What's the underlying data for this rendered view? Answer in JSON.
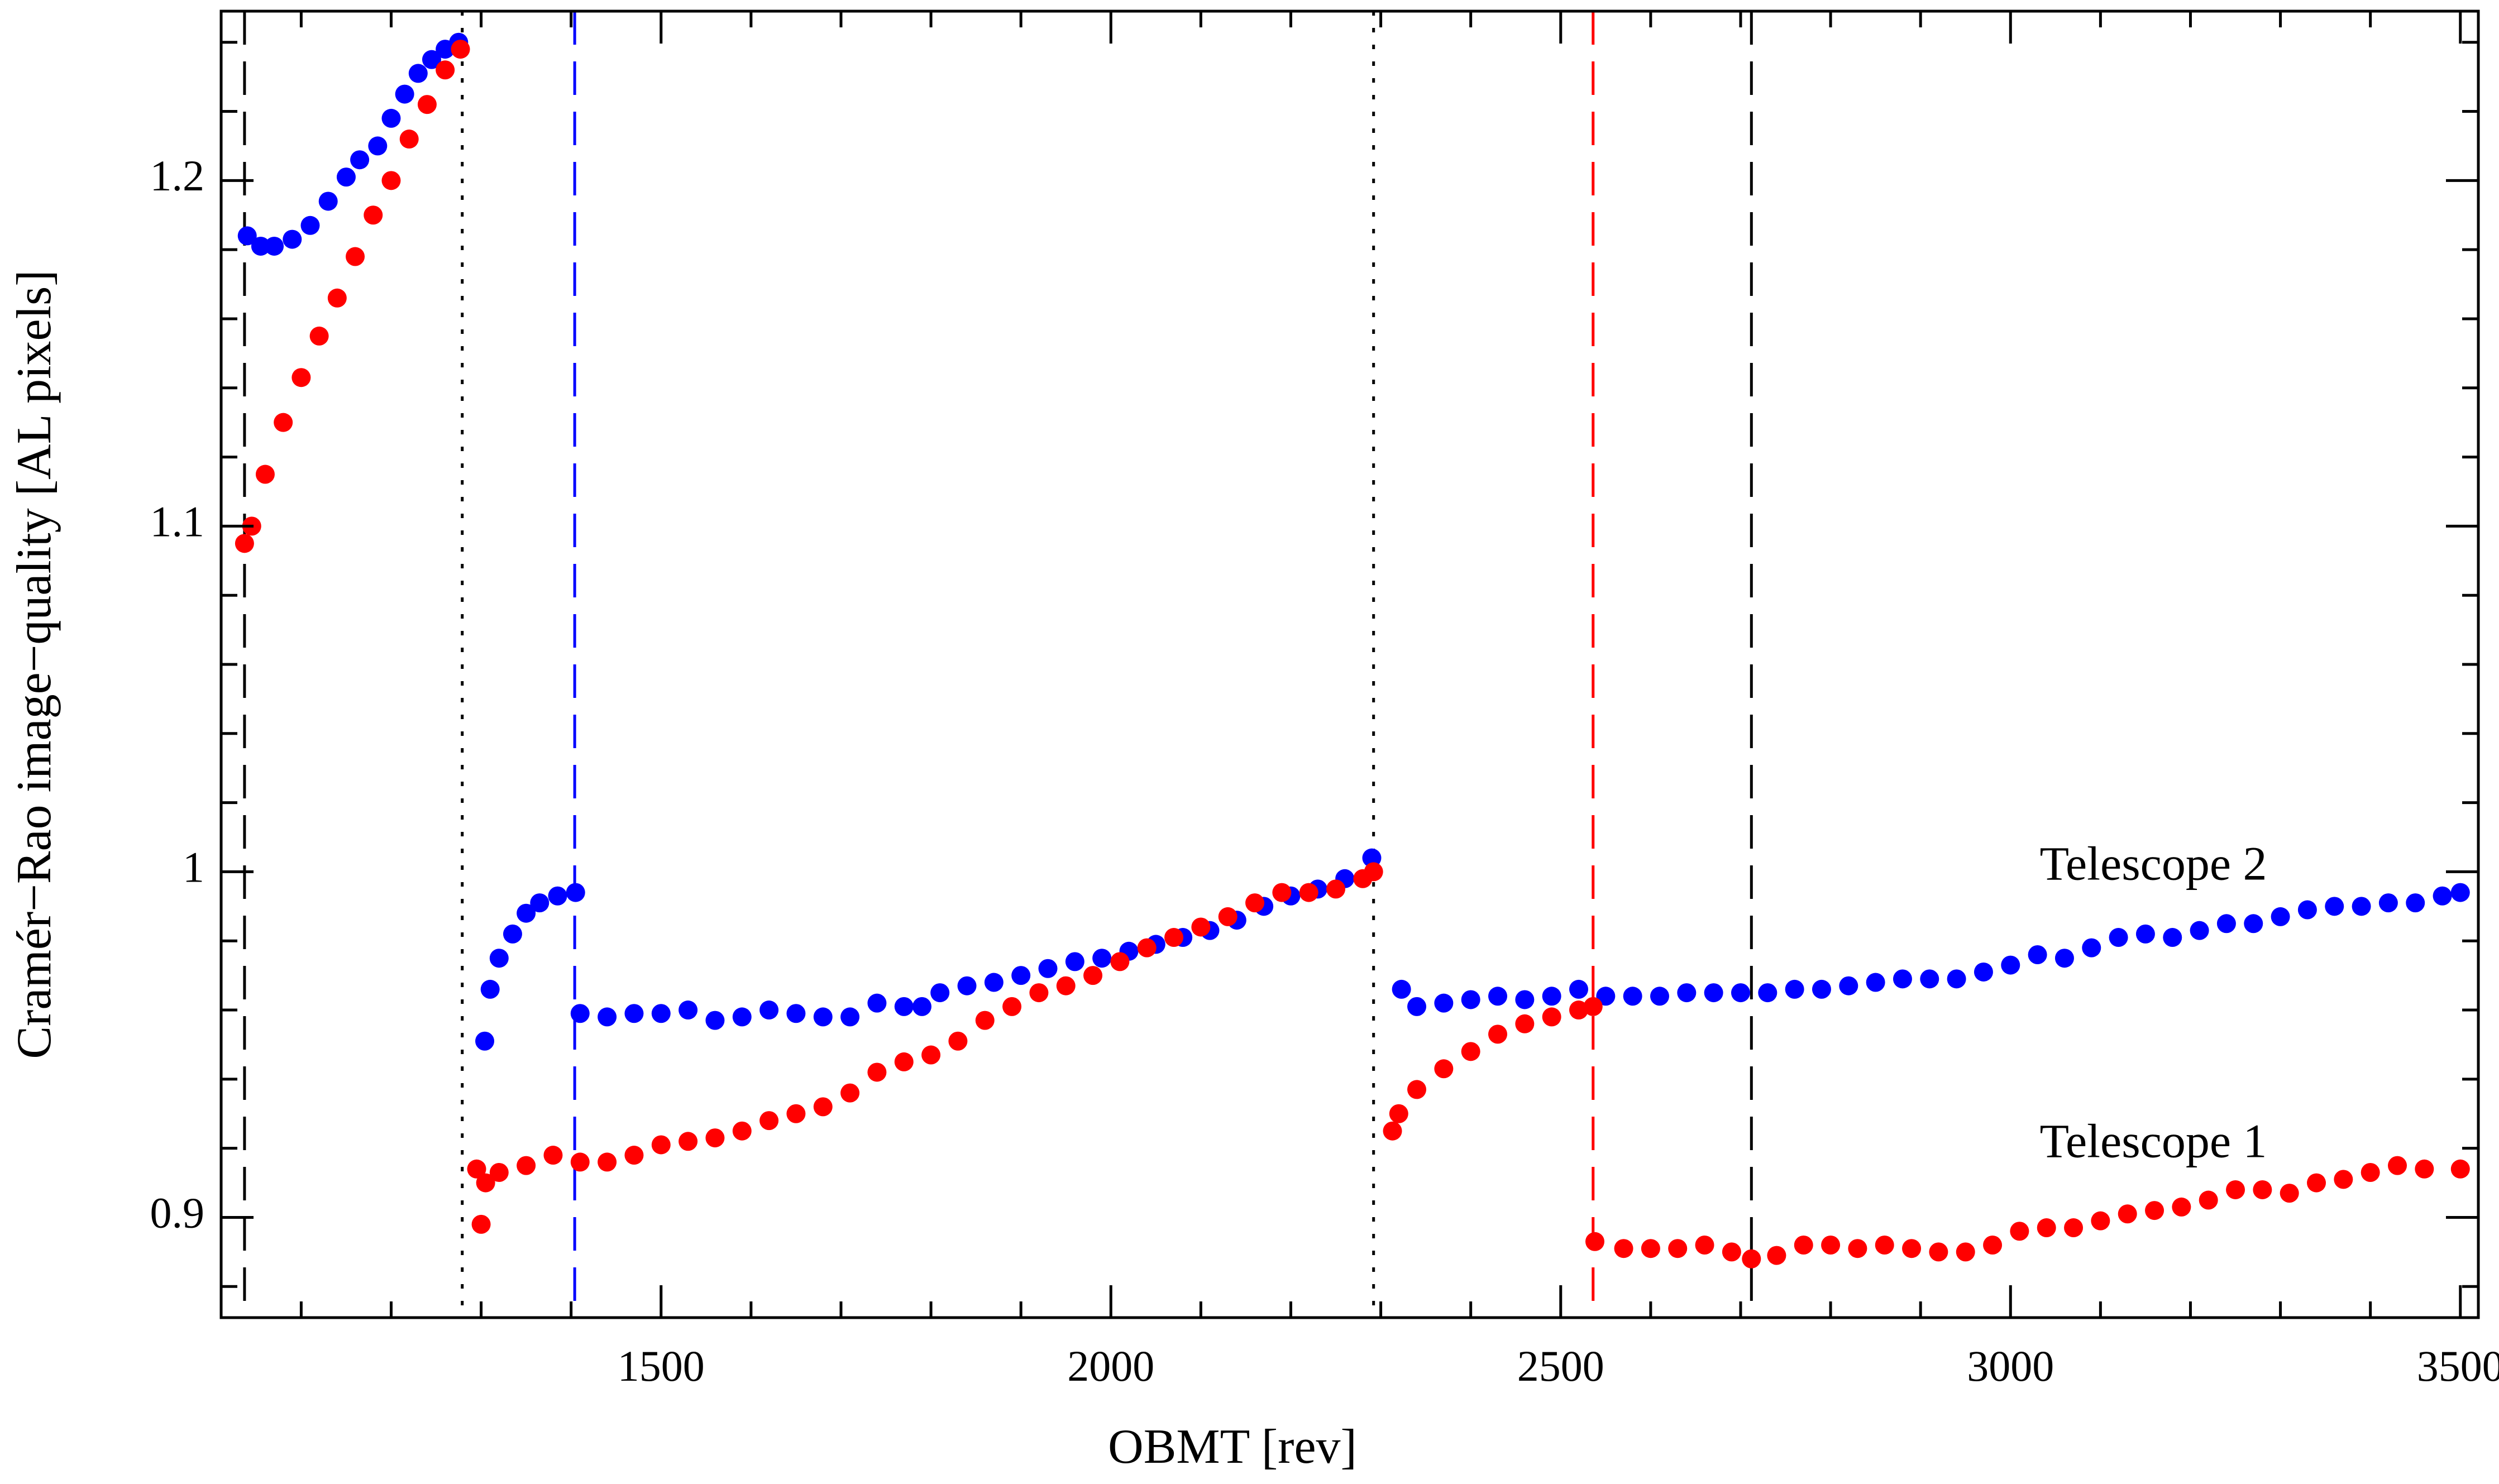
{
  "chart_data": {
    "type": "scatter",
    "xlabel": "OBMT [rev]",
    "ylabel": "Cramér−Rao image−quality [AL pixels]",
    "xlim": [
      1011,
      3520
    ],
    "ylim": [
      0.871,
      1.249
    ],
    "xticks": [
      1500,
      2000,
      2500,
      3000,
      3500
    ],
    "yticks": [
      0.9,
      1,
      1.1,
      1.2
    ],
    "xminor_ticks": [
      1100,
      1200,
      1300,
      1400,
      1600,
      1700,
      1800,
      1900,
      2100,
      2200,
      2300,
      2400,
      2600,
      2700,
      2800,
      2900,
      3100,
      3200,
      3300,
      3400
    ],
    "yminor_ticks": [
      0.88,
      0.92,
      0.94,
      0.96,
      0.98,
      1.02,
      1.04,
      1.06,
      1.08,
      1.12,
      1.14,
      1.16,
      1.18,
      1.22,
      1.24
    ],
    "vlines": [
      {
        "x": 1037,
        "color": "#000000",
        "style": "dashed"
      },
      {
        "x": 1279,
        "color": "#000000",
        "style": "dotted"
      },
      {
        "x": 1404,
        "color": "#0000ff",
        "style": "dashed"
      },
      {
        "x": 2292,
        "color": "#000000",
        "style": "dotted"
      },
      {
        "x": 2536,
        "color": "#ff0000",
        "style": "dashed"
      },
      {
        "x": 2712,
        "color": "#000000",
        "style": "dashed"
      }
    ],
    "series": [
      {
        "name": "Telescope 2",
        "color": "#0000ff",
        "x": [
          1040,
          1055,
          1070,
          1090,
          1110,
          1130,
          1150,
          1165,
          1185,
          1200,
          1215,
          1230,
          1245,
          1260,
          1275,
          1304,
          1310,
          1320,
          1335,
          1350,
          1365,
          1385,
          1405,
          1410,
          1440,
          1470,
          1500,
          1530,
          1560,
          1590,
          1620,
          1650,
          1680,
          1710,
          1740,
          1770,
          1790,
          1810,
          1840,
          1870,
          1900,
          1930,
          1960,
          1990,
          2020,
          2050,
          2080,
          2110,
          2140,
          2170,
          2200,
          2230,
          2260,
          2290,
          2323,
          2340,
          2370,
          2400,
          2430,
          2460,
          2490,
          2520,
          2550,
          2580,
          2610,
          2640,
          2670,
          2700,
          2730,
          2760,
          2790,
          2820,
          2850,
          2880,
          2910,
          2940,
          2970,
          3000,
          3030,
          3060,
          3090,
          3120,
          3150,
          3180,
          3210,
          3240,
          3270,
          3300,
          3330,
          3360,
          3390,
          3420,
          3450,
          3480,
          3500
        ],
        "values": [
          1.184,
          1.181,
          1.181,
          1.183,
          1.187,
          1.194,
          1.201,
          1.206,
          1.21,
          1.218,
          1.225,
          1.231,
          1.235,
          1.238,
          1.24,
          0.951,
          0.966,
          0.975,
          0.982,
          0.988,
          0.991,
          0.993,
          0.994,
          0.959,
          0.958,
          0.959,
          0.959,
          0.96,
          0.957,
          0.958,
          0.96,
          0.959,
          0.958,
          0.958,
          0.962,
          0.961,
          0.961,
          0.965,
          0.967,
          0.968,
          0.97,
          0.972,
          0.974,
          0.975,
          0.977,
          0.979,
          0.981,
          0.983,
          0.986,
          0.99,
          0.993,
          0.995,
          0.998,
          1.004,
          0.966,
          0.961,
          0.962,
          0.963,
          0.964,
          0.963,
          0.964,
          0.966,
          0.964,
          0.964,
          0.964,
          0.965,
          0.965,
          0.965,
          0.965,
          0.966,
          0.966,
          0.967,
          0.968,
          0.969,
          0.969,
          0.969,
          0.971,
          0.973,
          0.976,
          0.975,
          0.978,
          0.981,
          0.982,
          0.981,
          0.983,
          0.985,
          0.985,
          0.987,
          0.989,
          0.99,
          0.99,
          0.991,
          0.991,
          0.993,
          0.994
        ]
      },
      {
        "name": "Telescope 1",
        "color": "#ff0000",
        "x": [
          1037,
          1045,
          1060,
          1080,
          1100,
          1120,
          1140,
          1160,
          1180,
          1200,
          1220,
          1240,
          1260,
          1277,
          1295,
          1300,
          1305,
          1320,
          1350,
          1380,
          1410,
          1440,
          1470,
          1500,
          1530,
          1560,
          1590,
          1620,
          1650,
          1680,
          1710,
          1740,
          1770,
          1800,
          1830,
          1860,
          1890,
          1920,
          1950,
          1980,
          2010,
          2040,
          2070,
          2100,
          2130,
          2160,
          2190,
          2220,
          2250,
          2280,
          2292,
          2313,
          2320,
          2340,
          2370,
          2400,
          2430,
          2460,
          2490,
          2520,
          2536,
          2538,
          2570,
          2600,
          2630,
          2660,
          2690,
          2712,
          2740,
          2770,
          2800,
          2830,
          2860,
          2890,
          2920,
          2950,
          2980,
          3010,
          3040,
          3070,
          3100,
          3130,
          3160,
          3190,
          3220,
          3250,
          3280,
          3310,
          3340,
          3370,
          3400,
          3430,
          3460,
          3500
        ],
        "values": [
          1.095,
          1.1,
          1.115,
          1.13,
          1.143,
          1.155,
          1.166,
          1.178,
          1.19,
          1.2,
          1.212,
          1.222,
          1.232,
          1.238,
          0.914,
          0.898,
          0.91,
          0.913,
          0.915,
          0.918,
          0.916,
          0.916,
          0.918,
          0.921,
          0.922,
          0.923,
          0.925,
          0.928,
          0.93,
          0.932,
          0.936,
          0.942,
          0.945,
          0.947,
          0.951,
          0.957,
          0.961,
          0.965,
          0.967,
          0.97,
          0.974,
          0.978,
          0.981,
          0.984,
          0.987,
          0.991,
          0.994,
          0.994,
          0.995,
          0.998,
          1.0,
          0.925,
          0.93,
          0.937,
          0.943,
          0.948,
          0.953,
          0.956,
          0.958,
          0.96,
          0.961,
          0.893,
          0.891,
          0.891,
          0.891,
          0.892,
          0.89,
          0.888,
          0.889,
          0.892,
          0.892,
          0.891,
          0.892,
          0.891,
          0.89,
          0.89,
          0.892,
          0.896,
          0.897,
          0.897,
          0.899,
          0.901,
          0.902,
          0.903,
          0.905,
          0.908,
          0.908,
          0.907,
          0.91,
          0.911,
          0.913,
          0.915,
          0.914,
          0.914
        ]
      }
    ]
  }
}
